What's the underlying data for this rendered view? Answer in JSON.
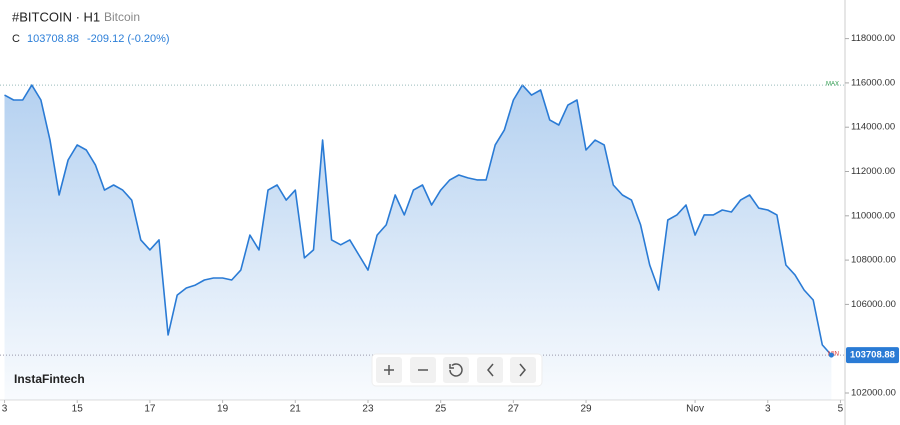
{
  "header": {
    "symbol": "#BITCOIN · H1",
    "name": "Bitcoin",
    "price_kind": "C",
    "change": "-209.12 (-0.20%)"
  },
  "brand": "InstaFintech",
  "chart_data": {
    "type": "area",
    "values": [
      115450,
      115230,
      115230,
      115900,
      115230,
      113420,
      110940,
      112520,
      113200,
      112970,
      112300,
      111160,
      111390,
      111160,
      110710,
      108910,
      108460,
      108910,
      104620,
      106420,
      106740,
      106870,
      107100,
      107190,
      107190,
      107100,
      107550,
      109130,
      108460,
      111160,
      111390,
      110710,
      111160,
      108100,
      108460,
      113420,
      108910,
      108690,
      108910,
      108230,
      107550,
      109130,
      109590,
      110940,
      110040,
      111160,
      111390,
      110490,
      111160,
      111620,
      111840,
      111710,
      111620,
      111620,
      113200,
      113870,
      115230,
      115900,
      115450,
      115680,
      114330,
      114100,
      115000,
      115230,
      112970,
      113420,
      113200,
      111390,
      110940,
      110710,
      109590,
      107780,
      106650,
      109810,
      110040,
      110490,
      109130,
      110040,
      110040,
      110260,
      110170,
      110710,
      110940,
      110350,
      110260,
      110040,
      107780,
      107330,
      106650,
      106200,
      104170,
      103708.88
    ],
    "color": "#2a7bd5",
    "xlim": [
      -0.5,
      92.5
    ],
    "xticks": [
      {
        "value": 0,
        "label": "3"
      },
      {
        "value": 8,
        "label": "15"
      },
      {
        "value": 16,
        "label": "17"
      },
      {
        "value": 24,
        "label": "19"
      },
      {
        "value": 32,
        "label": "21"
      },
      {
        "value": 40,
        "label": "23"
      },
      {
        "value": 48,
        "label": "25"
      },
      {
        "value": 56,
        "label": "27"
      },
      {
        "value": 64,
        "label": "29"
      },
      {
        "value": 76,
        "label": "Nov"
      },
      {
        "value": 84,
        "label": "3"
      },
      {
        "value": 92,
        "label": "5"
      }
    ],
    "ylim": [
      101684,
      119743
    ],
    "yticks": [
      {
        "value": 102000,
        "label": "102000.00"
      },
      {
        "value": 106000,
        "label": "106000.00"
      },
      {
        "value": 108000,
        "label": "108000.00"
      },
      {
        "value": 110000,
        "label": "110000.00"
      },
      {
        "value": 112000,
        "label": "112000.00"
      },
      {
        "value": 114000,
        "label": "114000.00"
      },
      {
        "value": 116000,
        "label": "116000.00"
      },
      {
        "value": 118000,
        "label": "118000.00"
      }
    ],
    "max_label": "MAX",
    "min_label": "MIN"
  }
}
